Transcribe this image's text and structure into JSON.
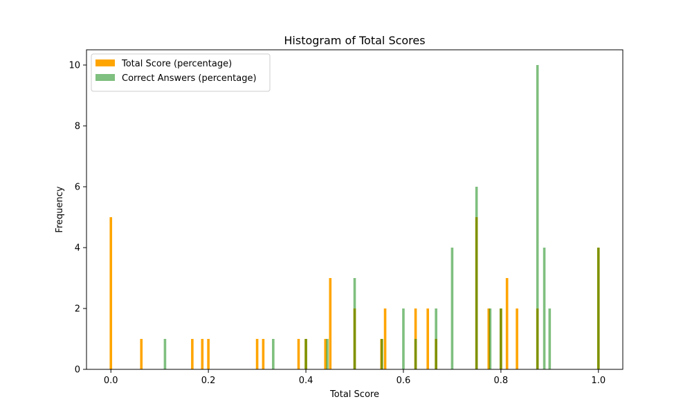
{
  "chart_data": {
    "type": "bar",
    "title": "Histogram of Total Scores",
    "xlabel": "Total Score",
    "ylabel": "Frequency",
    "xlim": [
      -0.05,
      1.05
    ],
    "ylim": [
      0,
      10.5
    ],
    "xticks": [
      0.0,
      0.2,
      0.4,
      0.6,
      0.8,
      1.0
    ],
    "xtick_labels": [
      "0.0",
      "0.2",
      "0.4",
      "0.6",
      "0.8",
      "1.0"
    ],
    "yticks": [
      0,
      2,
      4,
      6,
      8,
      10
    ],
    "ytick_labels": [
      "0",
      "2",
      "4",
      "6",
      "8",
      "10"
    ],
    "legend_position": "top-left",
    "series": [
      {
        "name": "Total Score (percentage)",
        "color": "#FFA500",
        "opacity": 1.0,
        "points": [
          {
            "x": 0.0,
            "y": 5
          },
          {
            "x": 0.0625,
            "y": 1
          },
          {
            "x": 0.167,
            "y": 1
          },
          {
            "x": 0.1875,
            "y": 1
          },
          {
            "x": 0.2,
            "y": 1
          },
          {
            "x": 0.3,
            "y": 1
          },
          {
            "x": 0.3125,
            "y": 1
          },
          {
            "x": 0.385,
            "y": 1
          },
          {
            "x": 0.4,
            "y": 1
          },
          {
            "x": 0.44,
            "y": 1
          },
          {
            "x": 0.45,
            "y": 3
          },
          {
            "x": 0.5,
            "y": 2
          },
          {
            "x": 0.555,
            "y": 1
          },
          {
            "x": 0.5625,
            "y": 2
          },
          {
            "x": 0.625,
            "y": 2
          },
          {
            "x": 0.65,
            "y": 2
          },
          {
            "x": 0.667,
            "y": 1
          },
          {
            "x": 0.75,
            "y": 5
          },
          {
            "x": 0.775,
            "y": 2
          },
          {
            "x": 0.8,
            "y": 2
          },
          {
            "x": 0.8125,
            "y": 3
          },
          {
            "x": 0.833,
            "y": 2
          },
          {
            "x": 0.875,
            "y": 2
          },
          {
            "x": 1.0,
            "y": 4
          }
        ]
      },
      {
        "name": "Correct Answers (percentage)",
        "color": "#008000",
        "opacity": 0.5,
        "points": [
          {
            "x": 0.111,
            "y": 1
          },
          {
            "x": 0.333,
            "y": 1
          },
          {
            "x": 0.4,
            "y": 1
          },
          {
            "x": 0.444,
            "y": 1
          },
          {
            "x": 0.5,
            "y": 3
          },
          {
            "x": 0.556,
            "y": 1
          },
          {
            "x": 0.6,
            "y": 2
          },
          {
            "x": 0.625,
            "y": 1
          },
          {
            "x": 0.667,
            "y": 2
          },
          {
            "x": 0.7,
            "y": 4
          },
          {
            "x": 0.75,
            "y": 6
          },
          {
            "x": 0.778,
            "y": 2
          },
          {
            "x": 0.8,
            "y": 2
          },
          {
            "x": 0.875,
            "y": 10
          },
          {
            "x": 0.889,
            "y": 4
          },
          {
            "x": 0.9,
            "y": 2
          },
          {
            "x": 1.0,
            "y": 4
          }
        ]
      }
    ]
  }
}
